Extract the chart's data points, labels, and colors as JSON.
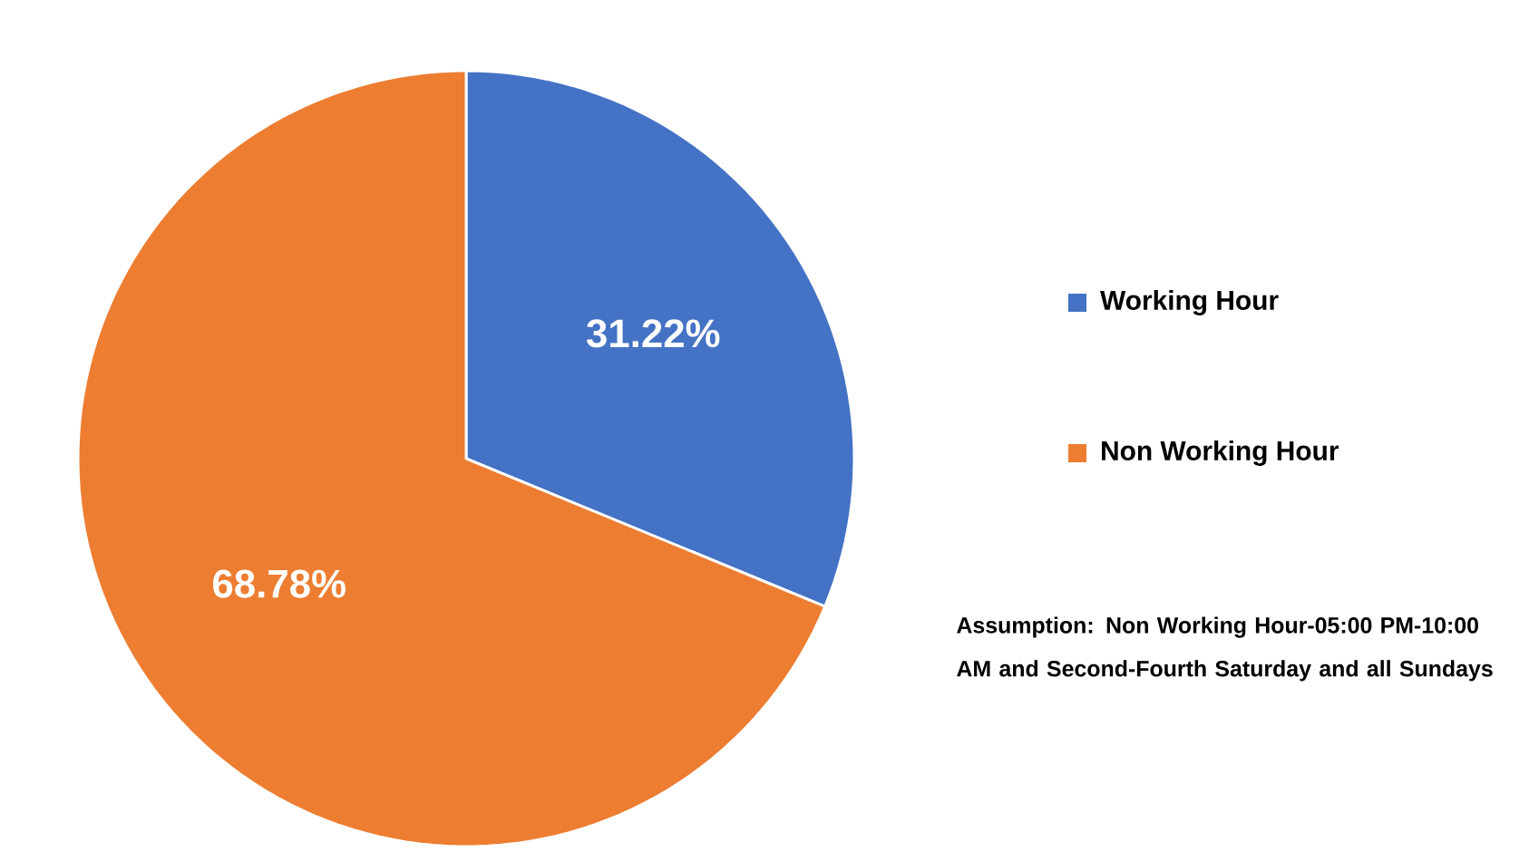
{
  "chart_data": {
    "type": "pie",
    "categories": [
      "Working Hour",
      "Non Working Hour"
    ],
    "values": [
      31.22,
      68.78
    ],
    "colors": [
      "#4472c4",
      "#ed7d31"
    ],
    "value_labels": [
      "31.22%",
      "68.78%"
    ],
    "legend": "right",
    "annotations": [
      "Assumption: Non Working Hour-05:00 PM-10:00 AM and Second-Fourth Saturday and all Sundays"
    ]
  }
}
